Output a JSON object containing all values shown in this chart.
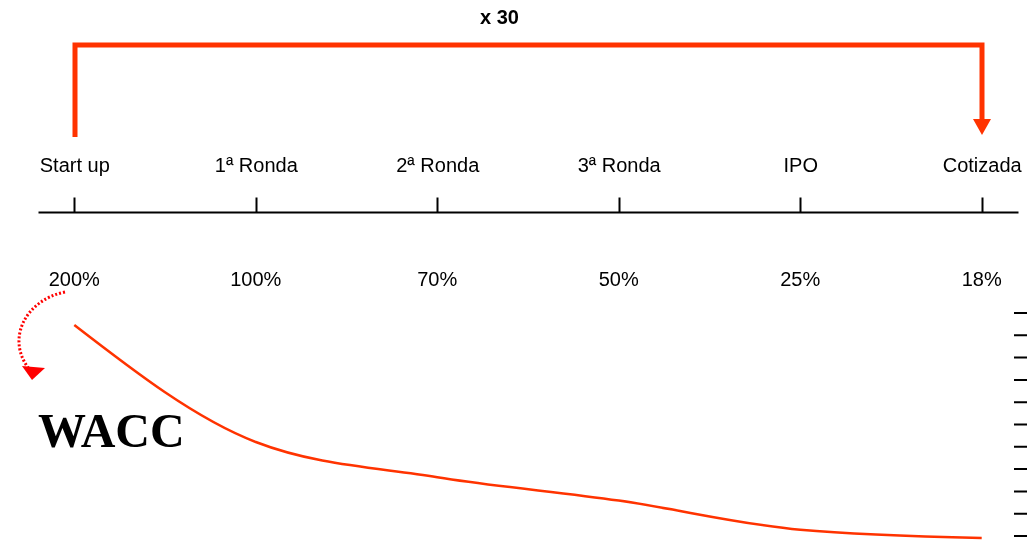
{
  "chart_data": {
    "type": "line",
    "categories": [
      "Start up",
      "1ª Ronda",
      "2ª Ronda",
      "3ª Ronda",
      "IPO",
      "Cotizada"
    ],
    "series": [
      {
        "color": "#ff3300",
        "values": [
          200,
          100,
          70,
          50,
          25,
          18
        ],
        "value_labels": [
          "200%",
          "100%",
          "70%",
          "50%",
          "25%",
          "18%"
        ]
      }
    ],
    "tick_labels": "x",
    "grid": false,
    "legend": false,
    "annotations": [
      "x 30",
      "WACC"
    ]
  }
}
